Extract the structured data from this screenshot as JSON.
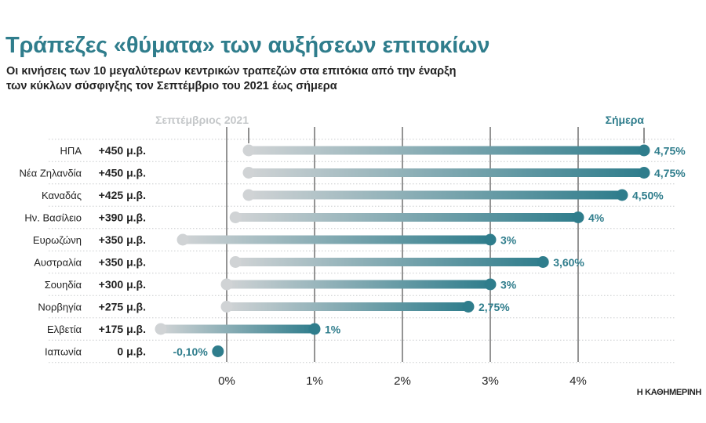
{
  "header": {
    "title": "Τράπεζες «θύματα» των αυξήσεων επιτοκίων",
    "subtitle_line1": "Οι κινήσεις των 10 μεγαλύτερων κεντρικών τραπεζών στα επιτόκια από την έναρξη",
    "subtitle_line2": "των κύκλων σύσφιγξης τον Σεπτέμβριο του 2021 έως σήμερα"
  },
  "source": "Η ΚΑΘΗΜΕΡΙΝΗ",
  "colors": {
    "start": "#d0d3d5",
    "end": "#2f7d8c",
    "legend_start": "#c4c7c9",
    "text": "#222222"
  },
  "chart_data": {
    "type": "dumbbell",
    "series": [
      {
        "name": "Σεπτέμβριος 2021"
      },
      {
        "name": "Σήμερα"
      }
    ],
    "xlim": [
      -0.8,
      5.0
    ],
    "x_ticks": [
      {
        "value": 0,
        "label": "0%"
      },
      {
        "value": 1,
        "label": "1%"
      },
      {
        "value": 2,
        "label": "2%"
      },
      {
        "value": 3,
        "label": "3%"
      },
      {
        "value": 4,
        "label": "4%"
      }
    ],
    "rows": [
      {
        "country": "ΗΠΑ",
        "change": "+450 μ.β.",
        "start": 0.25,
        "end": 4.75,
        "end_label": "4,75%"
      },
      {
        "country": "Νέα Ζηλανδία",
        "change": "+450 μ.β.",
        "start": 0.25,
        "end": 4.75,
        "end_label": "4,75%"
      },
      {
        "country": "Καναδάς",
        "change": "+425 μ.β.",
        "start": 0.25,
        "end": 4.5,
        "end_label": "4,50%"
      },
      {
        "country": "Ην. Βασίλειο",
        "change": "+390 μ.β.",
        "start": 0.1,
        "end": 4.0,
        "end_label": "4%"
      },
      {
        "country": "Ευρωζώνη",
        "change": "+350 μ.β.",
        "start": -0.5,
        "end": 3.0,
        "end_label": "3%"
      },
      {
        "country": "Αυστραλία",
        "change": "+350 μ.β.",
        "start": 0.1,
        "end": 3.6,
        "end_label": "3,60%"
      },
      {
        "country": "Σουηδία",
        "change": "+300 μ.β.",
        "start": 0.0,
        "end": 3.0,
        "end_label": "3%"
      },
      {
        "country": "Νορβηγία",
        "change": "+275 μ.β.",
        "start": 0.0,
        "end": 2.75,
        "end_label": "2,75%"
      },
      {
        "country": "Ελβετία",
        "change": "+175 μ.β.",
        "start": -0.75,
        "end": 1.0,
        "end_label": "1%"
      },
      {
        "country": "Ιαπωνία",
        "change": "0 μ.β.",
        "start": -0.1,
        "end": -0.1,
        "end_label": "-0,10%"
      }
    ]
  }
}
